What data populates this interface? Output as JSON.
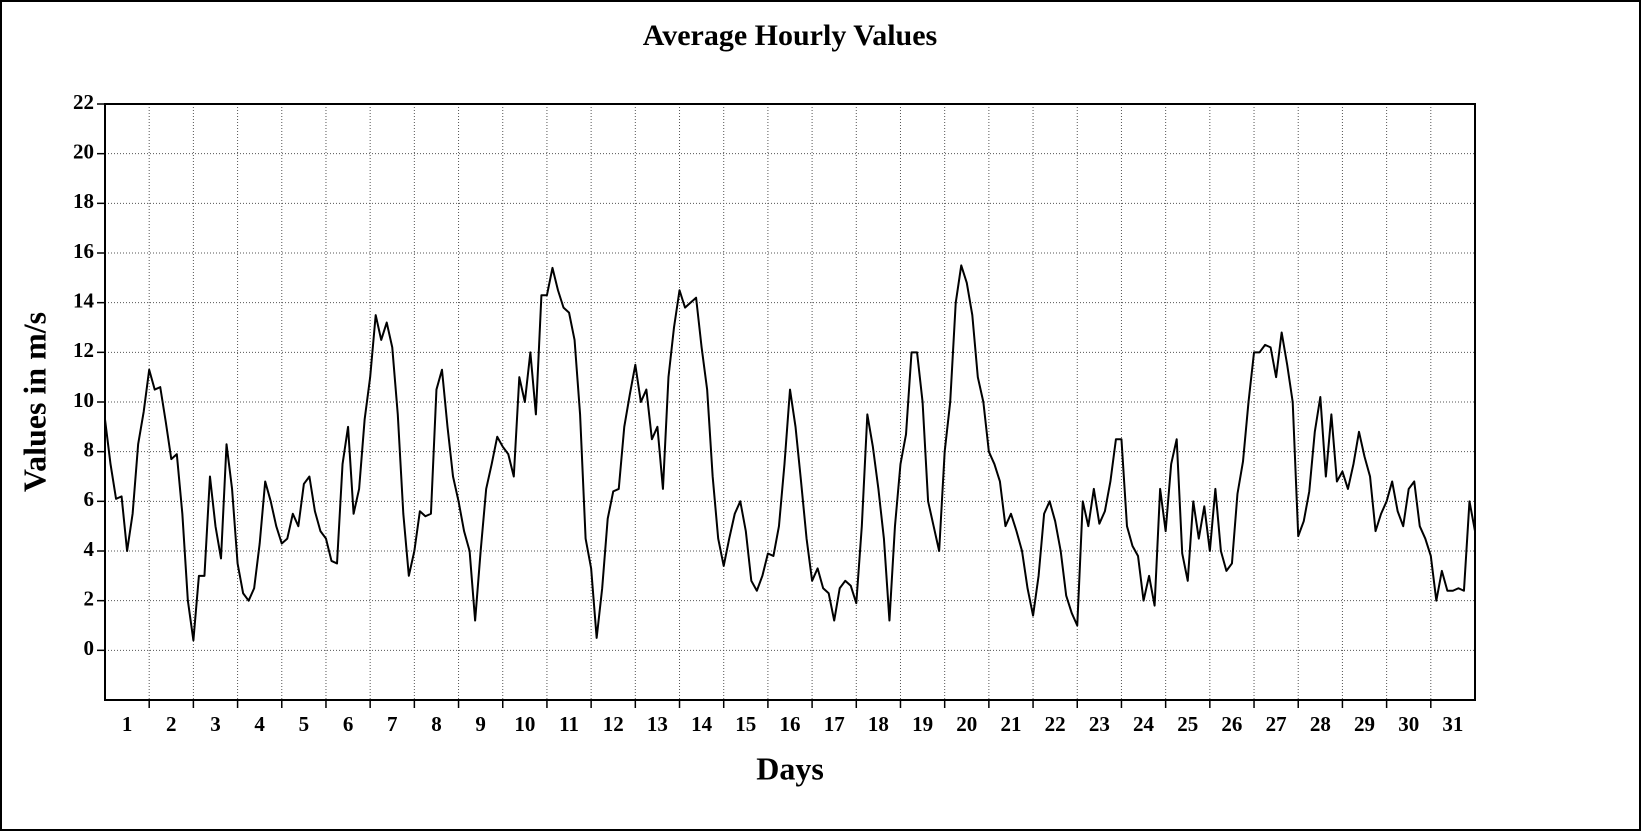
{
  "chart_data": {
    "type": "line",
    "title": "Average Hourly Values",
    "x_label": "Days",
    "y_label": "Values in m/s",
    "color": "#000000",
    "grid": true,
    "xlim": [
      0,
      31
    ],
    "ylim": [
      -2,
      22
    ],
    "yticks": [
      0,
      2,
      4,
      6,
      8,
      10,
      12,
      14,
      16,
      18,
      20,
      22
    ],
    "xticks": [
      {
        "value": 0.5,
        "label": "1"
      },
      {
        "value": 1.5,
        "label": "2"
      },
      {
        "value": 2.5,
        "label": "3"
      },
      {
        "value": 3.5,
        "label": "4"
      },
      {
        "value": 4.5,
        "label": "5"
      },
      {
        "value": 5.5,
        "label": "6"
      },
      {
        "value": 6.5,
        "label": "7"
      },
      {
        "value": 7.5,
        "label": "8"
      },
      {
        "value": 8.5,
        "label": "9"
      },
      {
        "value": 9.5,
        "label": "10"
      },
      {
        "value": 10.5,
        "label": "11"
      },
      {
        "value": 11.5,
        "label": "12"
      },
      {
        "value": 12.5,
        "label": "13"
      },
      {
        "value": 13.5,
        "label": "14"
      },
      {
        "value": 14.5,
        "label": "15"
      },
      {
        "value": 15.5,
        "label": "16"
      },
      {
        "value": 16.5,
        "label": "17"
      },
      {
        "value": 17.5,
        "label": "18"
      },
      {
        "value": 18.5,
        "label": "19"
      },
      {
        "value": 19.5,
        "label": "20"
      },
      {
        "value": 20.5,
        "label": "21"
      },
      {
        "value": 21.5,
        "label": "22"
      },
      {
        "value": 22.5,
        "label": "23"
      },
      {
        "value": 23.5,
        "label": "24"
      },
      {
        "value": 24.5,
        "label": "25"
      },
      {
        "value": 25.5,
        "label": "26"
      },
      {
        "value": 26.5,
        "label": "27"
      },
      {
        "value": 27.5,
        "label": "28"
      },
      {
        "value": 28.5,
        "label": "29"
      },
      {
        "value": 29.5,
        "label": "30"
      },
      {
        "value": 30.5,
        "label": "31"
      }
    ],
    "x": [
      0,
      0.125,
      0.25,
      0.375,
      0.5,
      0.625,
      0.75,
      0.875,
      1,
      1.125,
      1.25,
      1.375,
      1.5,
      1.625,
      1.75,
      1.875,
      2,
      2.125,
      2.25,
      2.375,
      2.5,
      2.625,
      2.75,
      2.875,
      3,
      3.125,
      3.25,
      3.375,
      3.5,
      3.625,
      3.75,
      3.875,
      4,
      4.125,
      4.25,
      4.375,
      4.5,
      4.625,
      4.75,
      4.875,
      5,
      5.125,
      5.25,
      5.375,
      5.5,
      5.625,
      5.75,
      5.875,
      6,
      6.125,
      6.25,
      6.375,
      6.5,
      6.625,
      6.75,
      6.875,
      7,
      7.125,
      7.25,
      7.375,
      7.5,
      7.625,
      7.75,
      7.875,
      8,
      8.125,
      8.25,
      8.375,
      8.5,
      8.625,
      8.75,
      8.875,
      9,
      9.125,
      9.25,
      9.375,
      9.5,
      9.625,
      9.75,
      9.875,
      10,
      10.125,
      10.25,
      10.375,
      10.5,
      10.625,
      10.75,
      10.875,
      11,
      11.125,
      11.25,
      11.375,
      11.5,
      11.625,
      11.75,
      11.875,
      12,
      12.125,
      12.25,
      12.375,
      12.5,
      12.625,
      12.75,
      12.875,
      13,
      13.125,
      13.25,
      13.375,
      13.5,
      13.625,
      13.75,
      13.875,
      14,
      14.125,
      14.25,
      14.375,
      14.5,
      14.625,
      14.75,
      14.875,
      15,
      15.125,
      15.25,
      15.375,
      15.5,
      15.625,
      15.75,
      15.875,
      16,
      16.125,
      16.25,
      16.375,
      16.5,
      16.625,
      16.75,
      16.875,
      17,
      17.125,
      17.25,
      17.375,
      17.5,
      17.625,
      17.75,
      17.875,
      18,
      18.125,
      18.25,
      18.375,
      18.5,
      18.625,
      18.75,
      18.875,
      19,
      19.125,
      19.25,
      19.375,
      19.5,
      19.625,
      19.75,
      19.875,
      20,
      20.125,
      20.25,
      20.375,
      20.5,
      20.625,
      20.75,
      20.875,
      21,
      21.125,
      21.25,
      21.375,
      21.5,
      21.625,
      21.75,
      21.875,
      22,
      22.125,
      22.25,
      22.375,
      22.5,
      22.625,
      22.75,
      22.875,
      23,
      23.125,
      23.25,
      23.375,
      23.5,
      23.625,
      23.75,
      23.875,
      24,
      24.125,
      24.25,
      24.375,
      24.5,
      24.625,
      24.75,
      24.875,
      25,
      25.125,
      25.25,
      25.375,
      25.5,
      25.625,
      25.75,
      25.875,
      26,
      26.125,
      26.25,
      26.375,
      26.5,
      26.625,
      26.75,
      26.875,
      27,
      27.125,
      27.25,
      27.375,
      27.5,
      27.625,
      27.75,
      27.875,
      28,
      28.125,
      28.25,
      28.375,
      28.5,
      28.625,
      28.75,
      28.875,
      29,
      29.125,
      29.25,
      29.375,
      29.5,
      29.625,
      29.75,
      29.875,
      30,
      30.125,
      30.25,
      30.375,
      30.5,
      30.625,
      30.75,
      30.875,
      31
    ],
    "values": [
      9.3,
      7.5,
      6.1,
      6.2,
      4.0,
      5.5,
      8.3,
      9.6,
      11.3,
      10.5,
      10.6,
      9.2,
      7.7,
      7.9,
      5.5,
      2.0,
      0.4,
      3.0,
      3.0,
      7.0,
      5.0,
      3.7,
      8.3,
      6.5,
      3.5,
      2.3,
      2.0,
      2.5,
      4.3,
      6.8,
      6.0,
      5.0,
      4.3,
      4.5,
      5.5,
      5.0,
      6.7,
      7.0,
      5.6,
      4.8,
      4.5,
      3.6,
      3.5,
      7.5,
      9.0,
      5.5,
      6.5,
      9.3,
      11.0,
      13.5,
      12.5,
      13.2,
      12.2,
      9.5,
      5.5,
      3.0,
      4.0,
      5.6,
      5.4,
      5.5,
      10.5,
      11.3,
      9.0,
      7.0,
      6.0,
      4.8,
      4.0,
      1.2,
      4.0,
      6.5,
      7.5,
      8.6,
      8.2,
      7.9,
      7.0,
      11.0,
      10.0,
      12.0,
      9.5,
      14.3,
      14.3,
      15.4,
      14.5,
      13.8,
      13.6,
      12.5,
      9.5,
      4.5,
      3.3,
      0.5,
      2.5,
      5.3,
      6.4,
      6.5,
      9.0,
      10.3,
      11.5,
      10.0,
      10.5,
      8.5,
      9.0,
      6.5,
      11.0,
      13.0,
      14.5,
      13.8,
      14.0,
      14.2,
      12.2,
      10.5,
      7.0,
      4.5,
      3.4,
      4.5,
      5.5,
      6.0,
      4.8,
      2.8,
      2.4,
      3.0,
      3.9,
      3.8,
      5.0,
      7.5,
      10.5,
      9.0,
      6.8,
      4.5,
      2.8,
      3.3,
      2.5,
      2.3,
      1.2,
      2.5,
      2.8,
      2.6,
      1.9,
      5.0,
      9.5,
      8.2,
      6.5,
      4.5,
      1.2,
      5.0,
      7.5,
      8.7,
      12.0,
      12.0,
      10.0,
      6.0,
      5.0,
      4.0,
      8.0,
      10.0,
      14.0,
      15.5,
      14.8,
      13.5,
      11.0,
      10.0,
      8.0,
      7.5,
      6.8,
      5.0,
      5.5,
      4.8,
      4.0,
      2.5,
      1.4,
      3.0,
      5.5,
      6.0,
      5.2,
      4.0,
      2.2,
      1.5,
      1.0,
      6.0,
      5.0,
      6.5,
      5.1,
      5.6,
      6.8,
      8.5,
      8.5,
      5.0,
      4.2,
      3.8,
      2.0,
      3.0,
      1.8,
      6.5,
      4.8,
      7.5,
      8.5,
      3.9,
      2.8,
      6.0,
      4.5,
      5.8,
      4.0,
      6.5,
      4.0,
      3.2,
      3.5,
      6.3,
      7.6,
      10.0,
      12.0,
      12.0,
      12.3,
      12.2,
      11.0,
      12.8,
      11.5,
      10.0,
      4.6,
      5.2,
      6.4,
      8.8,
      10.2,
      7.0,
      9.5,
      6.8,
      7.2,
      6.5,
      7.5,
      8.8,
      7.8,
      7.0,
      4.8,
      5.5,
      6.0,
      6.8,
      5.6,
      5.0,
      6.5,
      6.8,
      5.0,
      4.5,
      3.8,
      2.0,
      3.2,
      2.4,
      2.4,
      2.5,
      2.4,
      6.0,
      4.8
    ]
  }
}
